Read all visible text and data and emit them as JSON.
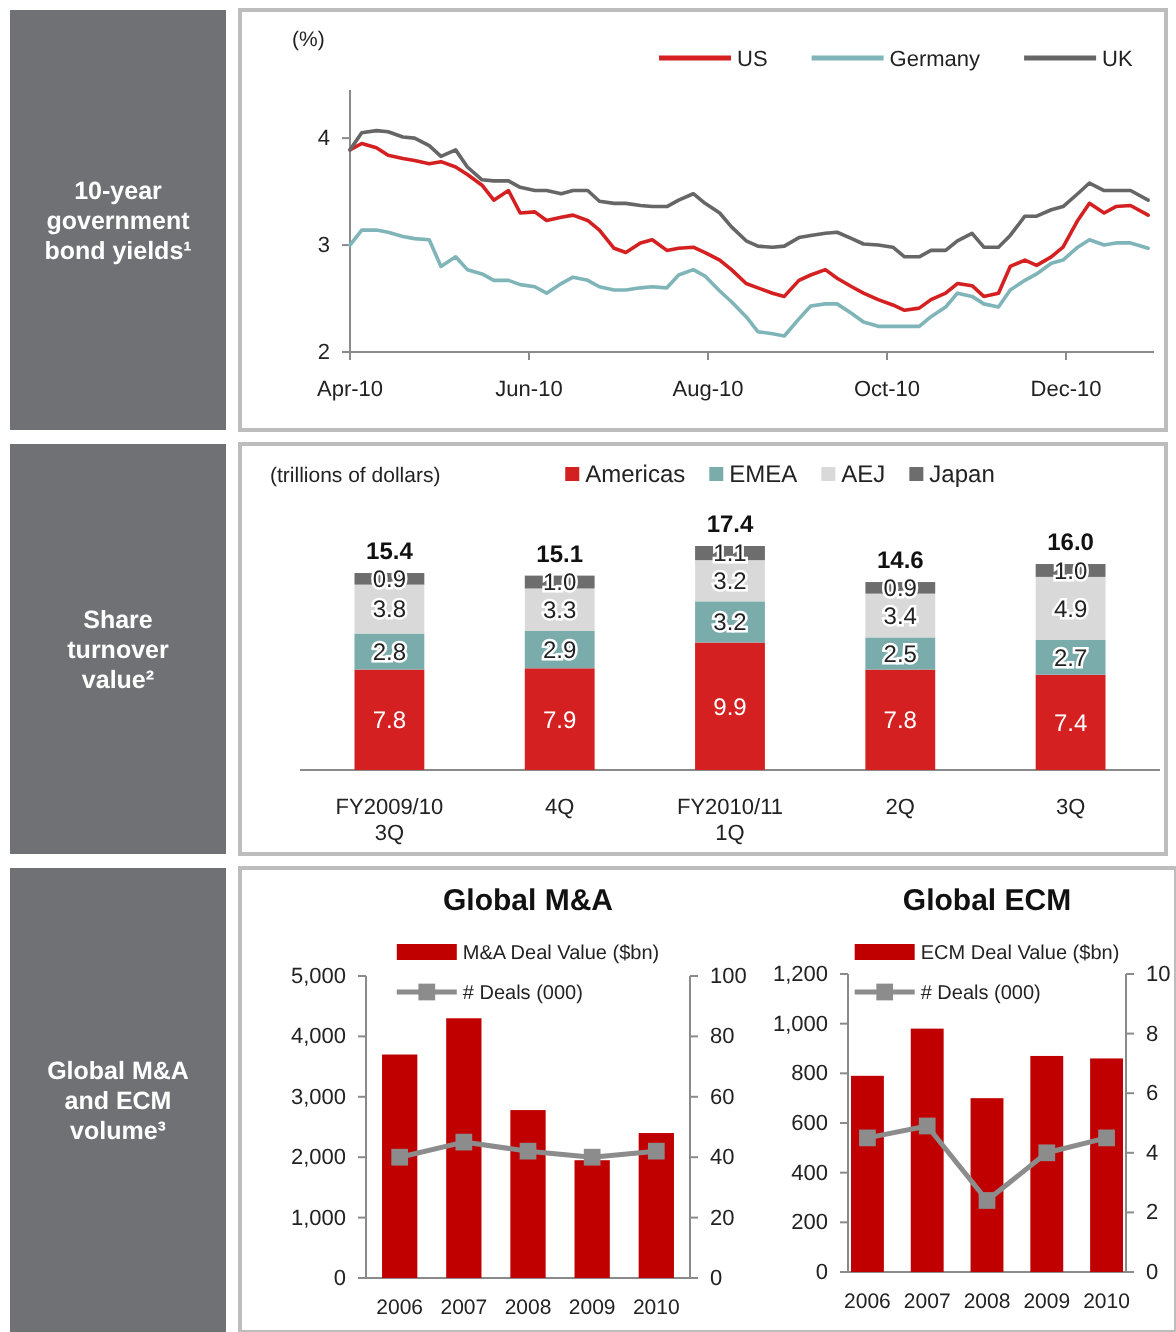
{
  "chart_data": [
    {
      "type": "line",
      "title": "10-year government bond yields¹",
      "ylabel": "(%)",
      "legend": "top right",
      "x": [
        "2010-04-01",
        "2010-04-05",
        "2010-04-10",
        "2010-04-14",
        "2010-04-19",
        "2010-04-23",
        "2010-04-28",
        "2010-05-02",
        "2010-05-07",
        "2010-05-11",
        "2010-05-16",
        "2010-05-20",
        "2010-05-25",
        "2010-05-29",
        "2010-06-03",
        "2010-06-07",
        "2010-06-12",
        "2010-06-16",
        "2010-06-21",
        "2010-06-25",
        "2010-06-30",
        "2010-07-04",
        "2010-07-09",
        "2010-07-13",
        "2010-07-18",
        "2010-07-22",
        "2010-07-27",
        "2010-07-31",
        "2010-08-05",
        "2010-08-09",
        "2010-08-14",
        "2010-08-18",
        "2010-08-23",
        "2010-08-27",
        "2010-09-01",
        "2010-09-05",
        "2010-09-10",
        "2010-09-14",
        "2010-09-19",
        "2010-09-23",
        "2010-09-28",
        "2010-10-03",
        "2010-10-07",
        "2010-10-12",
        "2010-10-16",
        "2010-10-21",
        "2010-10-25",
        "2010-10-30",
        "2010-11-03",
        "2010-11-08",
        "2010-11-12",
        "2010-11-17",
        "2010-11-21",
        "2010-11-26",
        "2010-11-30",
        "2010-12-05",
        "2010-12-09",
        "2010-12-14",
        "2010-12-18",
        "2010-12-23",
        "2010-12-29"
      ],
      "xlim": [
        "2010-04-01",
        "2010-12-31"
      ],
      "xticks": [
        {
          "value": "2010-04-01",
          "label": "Apr-10"
        },
        {
          "value": "2010-06-01",
          "label": "Jun-10"
        },
        {
          "value": "2010-08-01",
          "label": "Aug-10"
        },
        {
          "value": "2010-10-01",
          "label": "Oct-10"
        },
        {
          "value": "2010-12-01",
          "label": "Dec-10"
        }
      ],
      "ylim": [
        2,
        4.45
      ],
      "yticks": [
        2,
        3,
        4
      ],
      "series": [
        {
          "name": "US",
          "color": "#d42020",
          "values": [
            3.89,
            3.95,
            3.91,
            3.84,
            3.81,
            3.79,
            3.76,
            3.78,
            3.73,
            3.66,
            3.56,
            3.42,
            3.51,
            3.3,
            3.31,
            3.23,
            3.26,
            3.28,
            3.23,
            3.14,
            2.97,
            2.93,
            3.02,
            3.05,
            2.95,
            2.97,
            2.98,
            2.93,
            2.86,
            2.77,
            2.64,
            2.6,
            2.55,
            2.52,
            2.67,
            2.72,
            2.77,
            2.69,
            2.61,
            2.55,
            2.49,
            2.44,
            2.39,
            2.41,
            2.49,
            2.55,
            2.64,
            2.62,
            2.52,
            2.55,
            2.8,
            2.86,
            2.81,
            2.89,
            2.98,
            3.23,
            3.39,
            3.3,
            3.36,
            3.37,
            3.28
          ]
        },
        {
          "name": "Germany",
          "color": "#7fb5b8",
          "values": [
            3.0,
            3.14,
            3.14,
            3.12,
            3.08,
            3.06,
            3.05,
            2.8,
            2.89,
            2.77,
            2.73,
            2.67,
            2.67,
            2.63,
            2.61,
            2.55,
            2.64,
            2.7,
            2.67,
            2.61,
            2.58,
            2.58,
            2.6,
            2.61,
            2.6,
            2.72,
            2.77,
            2.71,
            2.57,
            2.47,
            2.33,
            2.19,
            2.17,
            2.15,
            2.31,
            2.43,
            2.45,
            2.45,
            2.36,
            2.28,
            2.24,
            2.24,
            2.24,
            2.24,
            2.33,
            2.42,
            2.55,
            2.52,
            2.45,
            2.42,
            2.58,
            2.67,
            2.73,
            2.83,
            2.86,
            2.98,
            3.05,
            3.0,
            3.02,
            3.02,
            2.97
          ]
        },
        {
          "name": "UK",
          "color": "#666666",
          "values": [
            3.89,
            4.05,
            4.07,
            4.06,
            4.01,
            4.0,
            3.93,
            3.83,
            3.89,
            3.73,
            3.61,
            3.6,
            3.6,
            3.54,
            3.51,
            3.51,
            3.48,
            3.51,
            3.51,
            3.41,
            3.39,
            3.39,
            3.37,
            3.36,
            3.36,
            3.42,
            3.48,
            3.39,
            3.3,
            3.17,
            3.04,
            2.99,
            2.98,
            2.99,
            3.07,
            3.09,
            3.11,
            3.12,
            3.06,
            3.01,
            3.0,
            2.98,
            2.89,
            2.89,
            2.95,
            2.95,
            3.04,
            3.11,
            2.98,
            2.98,
            3.09,
            3.27,
            3.27,
            3.33,
            3.36,
            3.48,
            3.58,
            3.51,
            3.51,
            3.51,
            3.42
          ]
        }
      ]
    },
    {
      "type": "bar",
      "title": "Share turnover value²",
      "ylabel": "(trillions of dollars)",
      "legend": "top",
      "stacked": true,
      "categories": [
        "FY2009/10 3Q",
        "4Q",
        "FY2010/11 1Q",
        "2Q",
        "3Q"
      ],
      "series": [
        {
          "name": "Americas",
          "color": "#d42020",
          "values": [
            7.8,
            7.9,
            9.9,
            7.8,
            7.4
          ],
          "value_labels": [
            "7.8",
            "7.9",
            "9.9",
            "7.8",
            "7.4"
          ]
        },
        {
          "name": "EMEA",
          "color": "#7aacac",
          "values": [
            2.8,
            2.9,
            3.2,
            2.5,
            2.7
          ],
          "value_labels": [
            "2.8",
            "2.9",
            "3.2",
            "2.5",
            "2.7"
          ]
        },
        {
          "name": "AEJ",
          "color": "#d9d9d9",
          "values": [
            3.8,
            3.3,
            3.2,
            3.4,
            4.9
          ],
          "value_labels": [
            "3.8",
            "3.3",
            "3.2",
            "3.4",
            "4.9"
          ]
        },
        {
          "name": "Japan",
          "color": "#6d6d6d",
          "values": [
            0.9,
            1.0,
            1.1,
            0.9,
            1.0
          ],
          "value_labels": [
            "0.9",
            "1.0",
            "1.1",
            "0.9",
            "1.0"
          ]
        }
      ],
      "totals": [
        "15.4",
        "15.1",
        "17.4",
        "14.6",
        "16.0"
      ]
    },
    {
      "type": "bar",
      "title": "Global M&A",
      "subtitle": "Global M&A and ECM volume³",
      "legend": "top",
      "marker": "square",
      "categories": [
        "2006",
        "2007",
        "2008",
        "2009",
        "2010"
      ],
      "ylim": [
        0,
        5000
      ],
      "yticks": [
        0,
        {
          "value": 1000,
          "label": "1,000"
        },
        {
          "value": 2000,
          "label": "2,000"
        },
        {
          "value": 3000,
          "label": "3,000"
        },
        {
          "value": 4000,
          "label": "4,000"
        },
        {
          "value": 5000,
          "label": "5,000"
        }
      ],
      "y2lim": [
        0,
        100
      ],
      "y2ticks": [
        0,
        20,
        40,
        60,
        80,
        100
      ],
      "series": [
        {
          "name": "M&A Deal Value ($bn)",
          "color": "#c00000",
          "values": [
            3700,
            4300,
            2780,
            1950,
            2400
          ]
        },
        {
          "name": "# Deals (000)",
          "type": "line",
          "axis": "y2",
          "color": "#8c8c8c",
          "values": [
            40,
            45,
            42,
            40,
            42
          ]
        }
      ]
    },
    {
      "type": "bar",
      "title": "Global ECM",
      "legend": "top",
      "marker": "square",
      "categories": [
        "2006",
        "2007",
        "2008",
        "2009",
        "2010"
      ],
      "ylim": [
        0,
        1200
      ],
      "yticks": [
        0,
        200,
        400,
        600,
        800,
        {
          "value": 1000,
          "label": "1,000"
        },
        {
          "value": 1200,
          "label": "1,200"
        }
      ],
      "y2lim": [
        0,
        10
      ],
      "y2ticks": [
        0,
        2,
        4,
        6,
        8,
        10
      ],
      "series": [
        {
          "name": "ECM Deal Value  ($bn)",
          "color": "#c00000",
          "values": [
            790,
            980,
            700,
            870,
            860
          ]
        },
        {
          "name": "# Deals (000)",
          "type": "line",
          "axis": "y2",
          "color": "#8c8c8c",
          "values": [
            4.5,
            4.9,
            2.4,
            4.0,
            4.5
          ]
        }
      ]
    }
  ]
}
